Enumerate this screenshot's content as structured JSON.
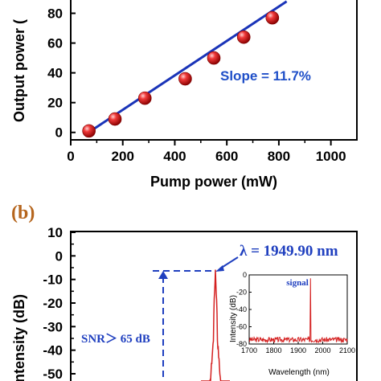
{
  "chart_data": [
    {
      "type": "scatter",
      "panel_label": "",
      "xlabel": "Pump power (mW)",
      "ylabel": "Output power (",
      "xlim": [
        0,
        1100
      ],
      "ylim": [
        -5,
        90
      ],
      "x_ticks": [
        0,
        200,
        400,
        600,
        800,
        1000
      ],
      "y_ticks": [
        0,
        20,
        40,
        60,
        80
      ],
      "x_tick_labels": [
        "0",
        "200",
        "400",
        "600",
        "800",
        "1000"
      ],
      "y_tick_labels": [
        "0",
        "20",
        "40",
        "60",
        "80"
      ],
      "annotation": "Slope = 11.7%",
      "series": [
        {
          "x": [
            70,
            170,
            285,
            440,
            550,
            665,
            775
          ],
          "y": [
            1,
            9,
            23,
            36,
            50,
            64,
            77
          ],
          "marker_color": "#e02020"
        }
      ],
      "fit_line": {
        "x": [
          60,
          830
        ],
        "y": [
          -1,
          88
        ],
        "color": "#1a34b8"
      },
      "grid": false
    },
    {
      "type": "line",
      "panel_label": "(b)",
      "ylabel": "ntensity (dB)",
      "ylim": [
        -55,
        10
      ],
      "y_ticks": [
        10,
        0,
        -10,
        -20,
        -30,
        -40,
        -50
      ],
      "y_tick_labels": [
        "10",
        "0",
        "-10",
        "-20",
        "-30",
        "-40",
        "-50"
      ],
      "peak_annotation": "λ = 1949.90 nm",
      "snr_annotation": "SNR＞ 65 dB",
      "peak_level_db": -6,
      "spectrum_color": "#d42020",
      "grid": false
    },
    {
      "type": "line",
      "inset": true,
      "xlabel": "Wavelength (nm)",
      "ylabel": "Intensity (dB)",
      "xlim": [
        1700,
        2100
      ],
      "ylim": [
        -80,
        0
      ],
      "x_ticks": [
        1700,
        1800,
        1900,
        2000,
        2100
      ],
      "y_ticks": [
        0,
        -20,
        -40,
        -60,
        -80
      ],
      "x_tick_labels": [
        "1700",
        "1800",
        "1900",
        "2000",
        "2100"
      ],
      "y_tick_labels": [
        "0",
        "-20",
        "-40",
        "-60",
        "-80"
      ],
      "annotation": "signal",
      "peak_wavelength_nm": 1949.9,
      "noise_floor_db": -75,
      "spectrum_color": "#d42020",
      "grid": false
    }
  ]
}
